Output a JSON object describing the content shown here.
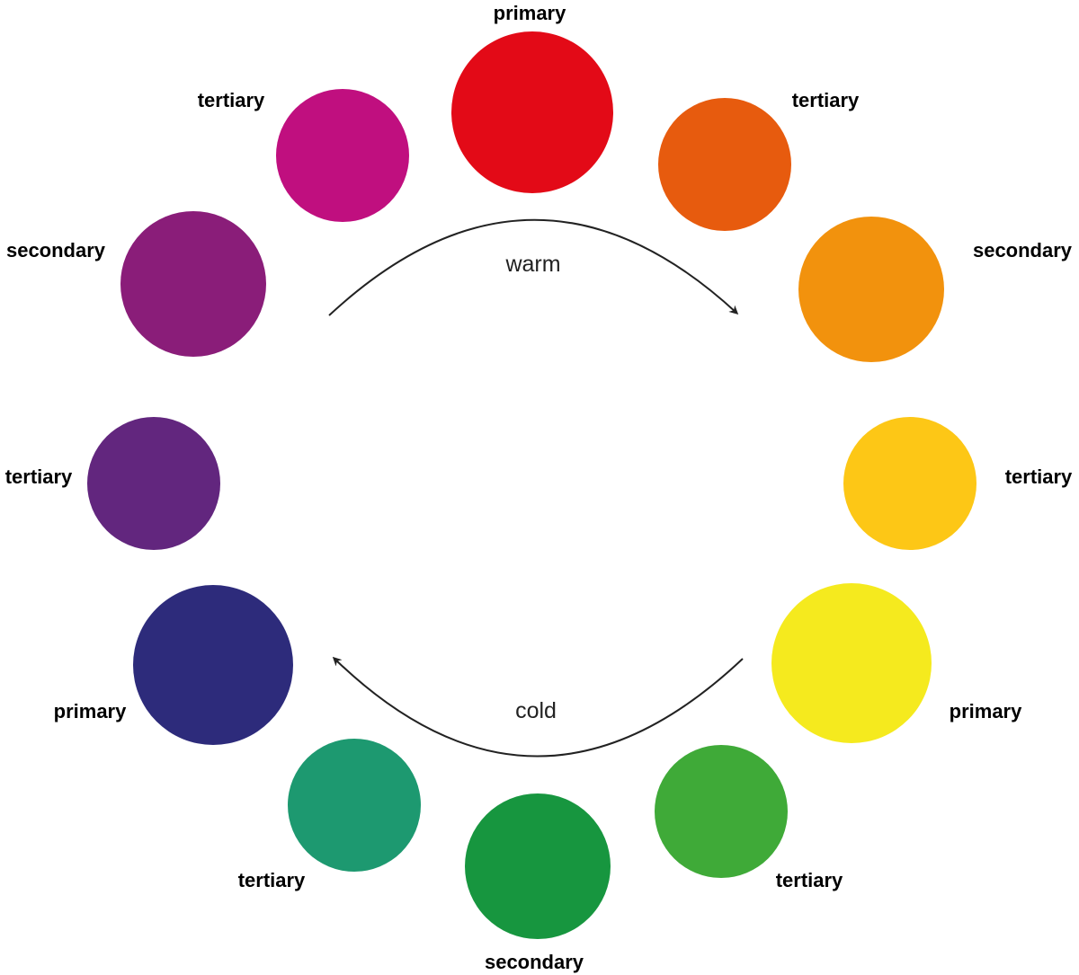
{
  "swatches": [
    {
      "id": "red",
      "role": "primary",
      "label": "primary",
      "color": "#E30A17"
    },
    {
      "id": "red-orange",
      "role": "tertiary",
      "label": "tertiary",
      "color": "#E75B0E"
    },
    {
      "id": "orange",
      "role": "secondary",
      "label": "secondary",
      "color": "#F2920D"
    },
    {
      "id": "yellow-orange",
      "role": "tertiary",
      "label": "tertiary",
      "color": "#FDC716"
    },
    {
      "id": "yellow",
      "role": "primary",
      "label": "primary",
      "color": "#F5EA1E"
    },
    {
      "id": "yellow-green",
      "role": "tertiary",
      "label": "tertiary",
      "color": "#3FAA38"
    },
    {
      "id": "green",
      "role": "secondary",
      "label": "secondary",
      "color": "#17963F"
    },
    {
      "id": "blue-green",
      "role": "tertiary",
      "label": "tertiary",
      "color": "#1D9970"
    },
    {
      "id": "blue",
      "role": "primary",
      "label": "primary",
      "color": "#2D2B7B"
    },
    {
      "id": "blue-violet",
      "role": "tertiary",
      "label": "tertiary",
      "color": "#62267E"
    },
    {
      "id": "violet",
      "role": "secondary",
      "label": "secondary",
      "color": "#8A1D79"
    },
    {
      "id": "red-violet",
      "role": "tertiary",
      "label": "tertiary",
      "color": "#C00F7F"
    }
  ],
  "arrows": {
    "warm_label": "warm",
    "cold_label": "cold",
    "stroke_color": "#222222"
  }
}
